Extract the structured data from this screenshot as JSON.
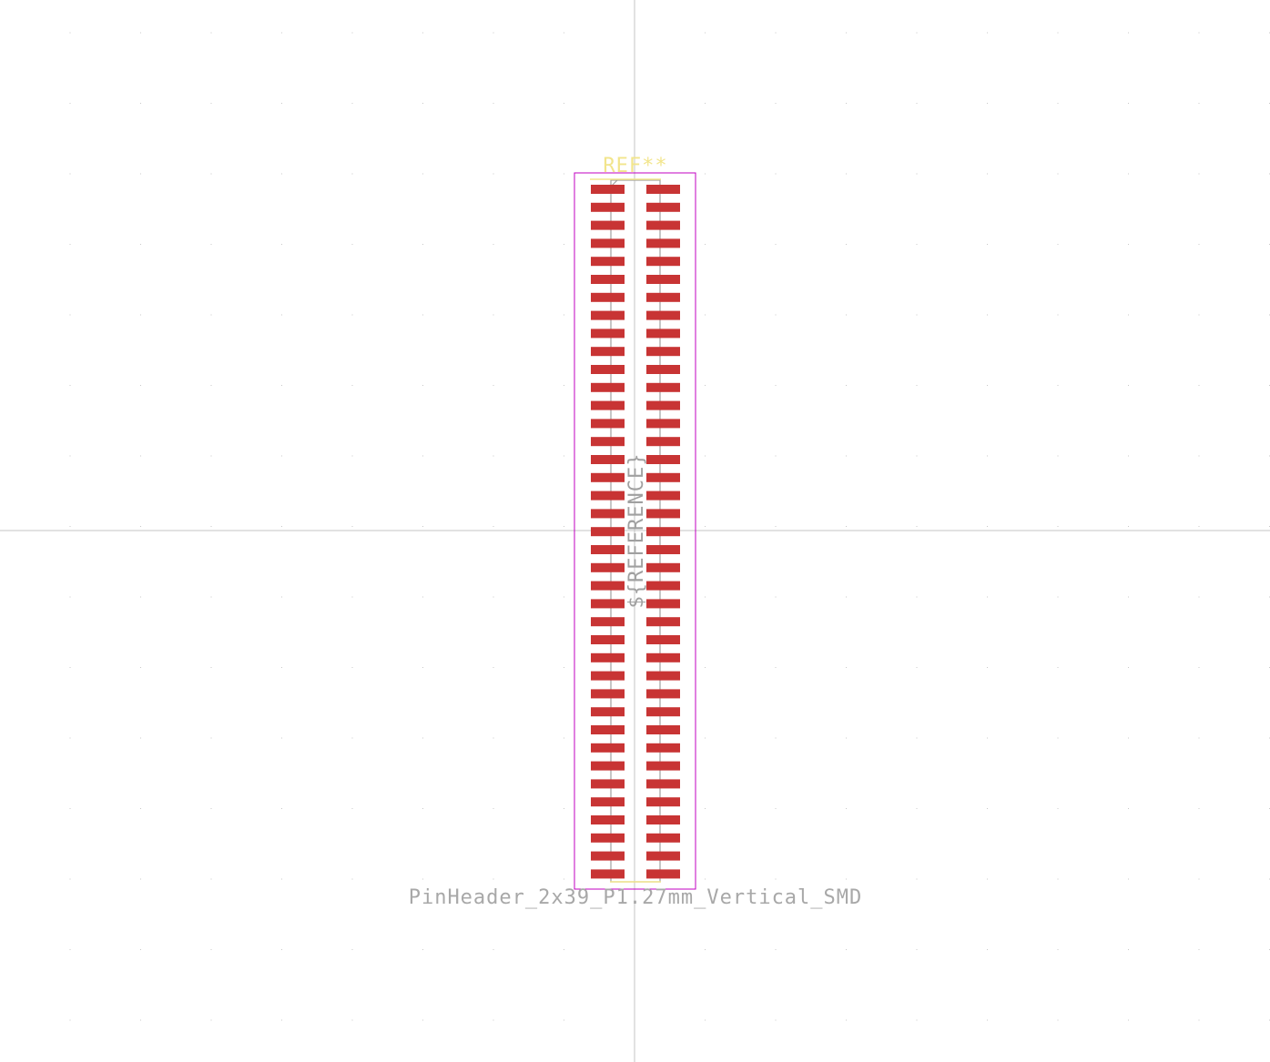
{
  "footprint": {
    "reference": "REF**",
    "reference_fab": "${REFERENCE}",
    "value": "PinHeader_2x39_P1.27mm_Vertical_SMD",
    "rows": 39,
    "columns": 2
  },
  "colors": {
    "background": "#ffffff",
    "grid_dot": "#c8c8c8",
    "axis": "#c4c4c4",
    "pad": "#c83434",
    "courtyard": "#c000c0",
    "silkscreen": "#f2e58c",
    "fab": "#a0a0a0",
    "value_text": "#a8a8a8"
  }
}
